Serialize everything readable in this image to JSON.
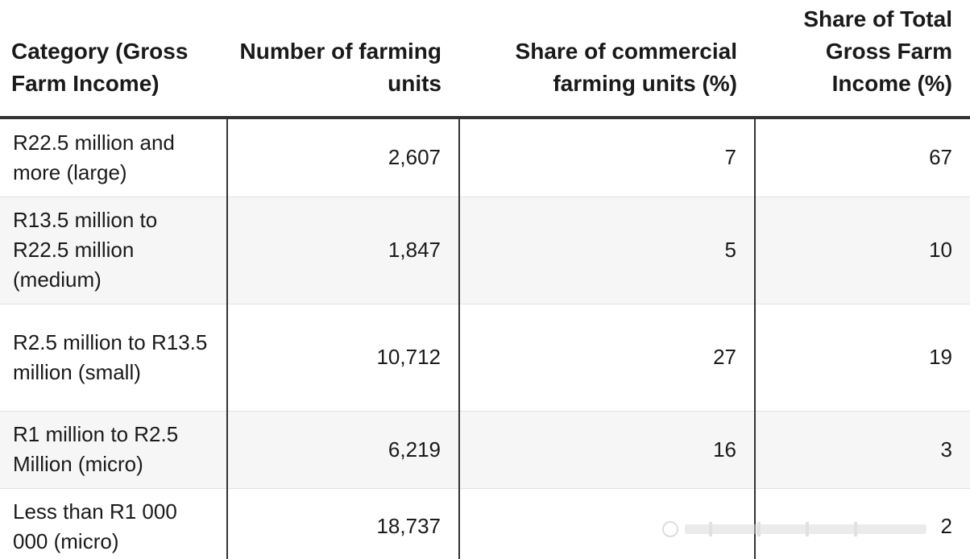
{
  "chart_data": {
    "type": "table",
    "columns": [
      "Category (Gross Farm Income)",
      "Number of farming units",
      "Share of commercial farming units (%)",
      "Share of Total Gross Farm Income (%)"
    ],
    "rows": [
      {
        "category": "R22.5 million and more (large)",
        "units": "2,607",
        "share_units": "7",
        "share_income": "67"
      },
      {
        "category": "R13.5 million to R22.5 million (medium)",
        "units": "1,847",
        "share_units": "5",
        "share_income": "10"
      },
      {
        "category": "R2.5 million to R13.5 million (small)",
        "units": "10,712",
        "share_units": "27",
        "share_income": "19"
      },
      {
        "category": "R1 million to R2.5 Million (micro)",
        "units": "6,219",
        "share_units": "16",
        "share_income": "3"
      },
      {
        "category": "Less than R1 000 000 (micro)",
        "units": "18,737",
        "share_units": "",
        "share_income": "2"
      }
    ]
  }
}
